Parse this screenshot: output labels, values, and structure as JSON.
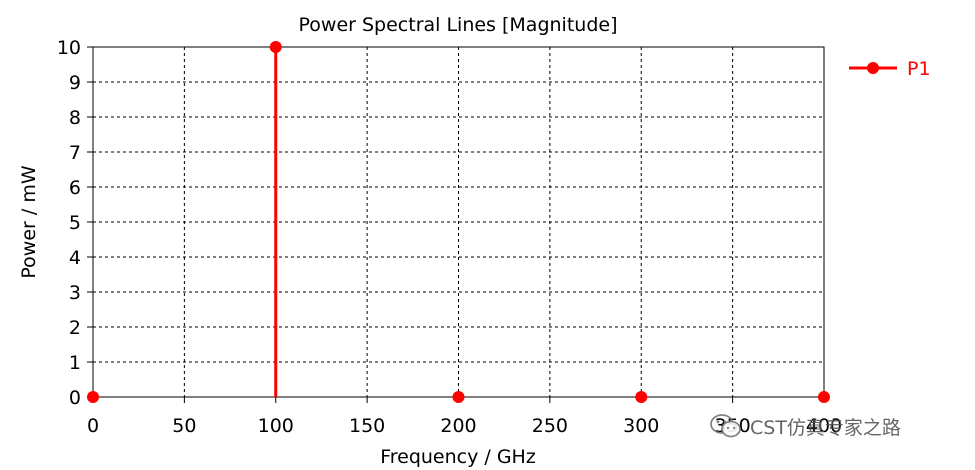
{
  "chart_data": {
    "type": "line",
    "title": "Power Spectral Lines [Magnitude]",
    "xlabel": "Frequency / GHz",
    "ylabel": "Power / mW",
    "xlim": [
      0,
      400
    ],
    "ylim": [
      0,
      10
    ],
    "x_ticks": [
      "0",
      "50",
      "100",
      "150",
      "200",
      "250",
      "300",
      "350",
      "400"
    ],
    "y_ticks": [
      "0",
      "1",
      "2",
      "3",
      "4",
      "5",
      "6",
      "7",
      "8",
      "9",
      "10"
    ],
    "x_tick_values": [
      0,
      50,
      100,
      150,
      200,
      250,
      300,
      350,
      400
    ],
    "y_tick_values": [
      0,
      1,
      2,
      3,
      4,
      5,
      6,
      7,
      8,
      9,
      10
    ],
    "grid": true,
    "legend_position": "top-right-outside",
    "series": [
      {
        "name": "P1",
        "color": "#ff0000",
        "x": [
          0,
          100,
          200,
          300,
          400
        ],
        "y": [
          0,
          10,
          0,
          0,
          0
        ]
      }
    ]
  },
  "watermark": {
    "text": "CST仿真专家之路",
    "icon": "wechat-icon"
  }
}
